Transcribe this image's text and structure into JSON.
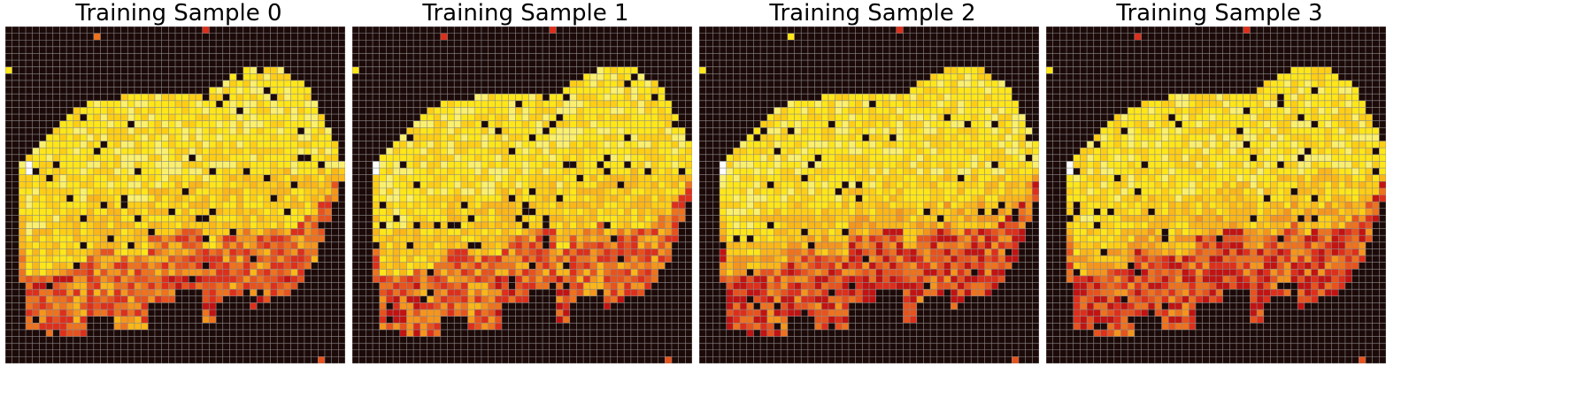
{
  "chart_data": [
    {
      "type": "heatmap",
      "title": "Training Sample 0",
      "grid": true,
      "variant": 0
    },
    {
      "type": "heatmap",
      "title": "Training Sample 1",
      "grid": true,
      "variant": 1
    },
    {
      "type": "heatmap",
      "title": "Training Sample 2",
      "grid": true,
      "variant": 2
    },
    {
      "type": "heatmap",
      "title": "Training Sample 3",
      "grid": true,
      "variant": 3
    }
  ],
  "colors": {
    "background": "#1c0a09",
    "gridline": "#8c8c8c",
    "palette": [
      "#fbf06d",
      "#ffe619",
      "#ffce14",
      "#fbb617",
      "#f6951b",
      "#ef721d",
      "#e8531d",
      "#de2f1b",
      "#c21312",
      "#ffffff"
    ]
  }
}
